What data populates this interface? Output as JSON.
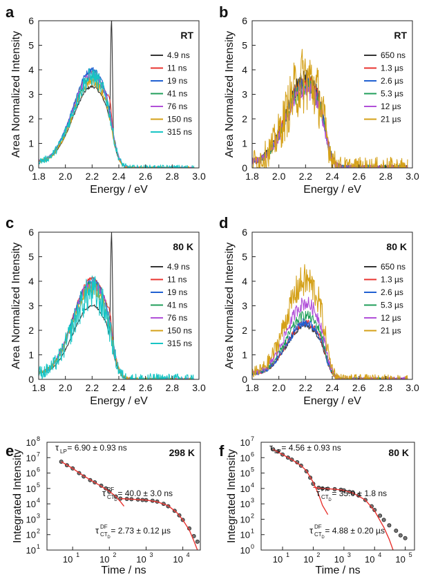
{
  "chart_data": [
    {
      "panel": "a",
      "type": "line",
      "annotation": "RT",
      "xlabel": "Energy / eV",
      "ylabel": "Area Normalized Intensity",
      "xlim": [
        1.8,
        3.0
      ],
      "ylim": [
        0,
        6
      ],
      "xticks": [
        "1.8",
        "2.0",
        "2.2",
        "2.4",
        "2.6",
        "2.8",
        "3.0"
      ],
      "yticks": [
        "0",
        "1",
        "2",
        "3",
        "4",
        "5",
        "6"
      ],
      "legend_position": "right",
      "series": [
        {
          "name": "4.9 ns",
          "color": "#333333",
          "peak": 3.3,
          "spike": 6.0,
          "noise": 0.05
        },
        {
          "name": "11 ns",
          "color": "#e8332f",
          "peak": 3.9,
          "shoulder": 3.0,
          "noise": 0.05
        },
        {
          "name": "19 ns",
          "color": "#1f5fd1",
          "peak": 4.0,
          "noise": 0.08
        },
        {
          "name": "41 ns",
          "color": "#1f9e5a",
          "peak": 3.7,
          "noise": 0.1
        },
        {
          "name": "76 ns",
          "color": "#b04fd8",
          "peak": 3.8,
          "noise": 0.12
        },
        {
          "name": "150 ns",
          "color": "#d4a017",
          "peak": 3.5,
          "noise": 0.15
        },
        {
          "name": "315 ns",
          "color": "#17c4c4",
          "peak": 3.7,
          "noise": 0.3
        }
      ]
    },
    {
      "panel": "b",
      "type": "line",
      "annotation": "RT",
      "xlabel": "Energy / eV",
      "ylabel": "Area Normalized Intensity",
      "xlim": [
        1.8,
        3.0
      ],
      "ylim": [
        0,
        6
      ],
      "xticks": [
        "1.8",
        "2.0",
        "2.2",
        "2.4",
        "2.6",
        "2.8",
        "3.0"
      ],
      "yticks": [
        "0",
        "1",
        "2",
        "3",
        "4",
        "5",
        "6"
      ],
      "legend_position": "right",
      "series": [
        {
          "name": "650 ns",
          "color": "#333333",
          "peak": 3.6,
          "noise": 0.3
        },
        {
          "name": "1.3 µs",
          "color": "#e8332f",
          "peak": 3.5,
          "noise": 0.25
        },
        {
          "name": "2.6 µs",
          "color": "#1f5fd1",
          "peak": 3.4,
          "noise": 0.25
        },
        {
          "name": "5.3 µs",
          "color": "#1f9e5a",
          "peak": 3.3,
          "noise": 0.3
        },
        {
          "name": "12 µs",
          "color": "#b04fd8",
          "peak": 3.2,
          "noise": 0.35
        },
        {
          "name": "21 µs",
          "color": "#d4a017",
          "peak": 3.6,
          "noise": 1.1
        }
      ]
    },
    {
      "panel": "c",
      "type": "line",
      "annotation": "80 K",
      "xlabel": "Energy / eV",
      "ylabel": "Area Normalized Intensity",
      "xlim": [
        1.8,
        3.0
      ],
      "ylim": [
        0,
        6
      ],
      "xticks": [
        "1.8",
        "2.0",
        "2.2",
        "2.4",
        "2.6",
        "2.8",
        "3.0"
      ],
      "yticks": [
        "0",
        "1",
        "2",
        "3",
        "4",
        "5",
        "6"
      ],
      "legend_position": "right",
      "series": [
        {
          "name": "4.9 ns",
          "color": "#333333",
          "peak": 3.0,
          "spike": 6.0,
          "noise": 0.05
        },
        {
          "name": "11 ns",
          "color": "#e8332f",
          "peak": 4.1,
          "shoulder": 3.0,
          "noise": 0.05
        },
        {
          "name": "19 ns",
          "color": "#1f5fd1",
          "peak": 4.0,
          "noise": 0.1
        },
        {
          "name": "41 ns",
          "color": "#1f9e5a",
          "peak": 3.9,
          "noise": 0.1
        },
        {
          "name": "76 ns",
          "color": "#b04fd8",
          "peak": 3.9,
          "noise": 0.15
        },
        {
          "name": "150 ns",
          "color": "#d4a017",
          "peak": 3.7,
          "noise": 0.2
        },
        {
          "name": "315 ns",
          "color": "#17c4c4",
          "peak": 3.5,
          "noise": 0.6
        }
      ]
    },
    {
      "panel": "d",
      "type": "line",
      "annotation": "80 K",
      "xlabel": "Energy / eV",
      "ylabel": "Area Normalized Intensity",
      "xlim": [
        1.8,
        3.0
      ],
      "ylim": [
        0,
        6
      ],
      "xticks": [
        "1.8",
        "2.0",
        "2.2",
        "2.4",
        "2.6",
        "2.8",
        "3.0"
      ],
      "yticks": [
        "0",
        "1",
        "2",
        "3",
        "4",
        "5",
        "6"
      ],
      "legend_position": "right",
      "series": [
        {
          "name": "650 ns",
          "color": "#333333",
          "peak": 2.2,
          "noise": 0.15
        },
        {
          "name": "1.3 µs",
          "color": "#e8332f",
          "peak": 2.3,
          "noise": 0.15
        },
        {
          "name": "2.6 µs",
          "color": "#1f5fd1",
          "peak": 2.3,
          "noise": 0.2
        },
        {
          "name": "5.3 µs",
          "color": "#1f9e5a",
          "peak": 2.6,
          "noise": 0.2
        },
        {
          "name": "12 µs",
          "color": "#b04fd8",
          "peak": 3.1,
          "noise": 0.25
        },
        {
          "name": "21 µs",
          "color": "#d4a017",
          "peak": 4.0,
          "noise": 0.5
        }
      ]
    },
    {
      "panel": "e",
      "type": "scatter",
      "annotation": "298 K",
      "xlabel": "Time / ns",
      "ylabel": "Integrated Intensity",
      "xscale": "log",
      "yscale": "log",
      "xlim": [
        2,
        30000
      ],
      "ylim": [
        10,
        100000000
      ],
      "xtick_exponents": [
        1,
        2,
        3,
        4
      ],
      "ytick_exponents": [
        1,
        2,
        3,
        4,
        5,
        6,
        7,
        8
      ],
      "fit_annotations": [
        {
          "sym": "τ",
          "sub": "LP",
          "sup": "",
          "text": " = 6.90 ± 0.93 ns"
        },
        {
          "sym": "τ",
          "sub": "CT",
          "subsub": "D",
          "sup": "PF",
          "text": " = 40.0 ± 3.0 ns"
        },
        {
          "sym": "τ",
          "sub": "CT",
          "subsub": "D",
          "sup": "DF",
          "text": " = 2.73 ± 0.12 µs"
        }
      ],
      "points": [
        [
          4.9,
          5500000
        ],
        [
          7,
          3200000
        ],
        [
          10,
          2000000
        ],
        [
          15,
          1000000
        ],
        [
          20,
          600000
        ],
        [
          30,
          350000
        ],
        [
          40,
          250000
        ],
        [
          60,
          150000
        ],
        [
          80,
          100000
        ],
        [
          100,
          60000
        ],
        [
          150,
          30000
        ],
        [
          200,
          22000
        ],
        [
          300,
          21000
        ],
        [
          400,
          20000
        ],
        [
          600,
          19000
        ],
        [
          800,
          18000
        ],
        [
          1000,
          17500
        ],
        [
          1500,
          16000
        ],
        [
          2000,
          14000
        ],
        [
          3000,
          10000
        ],
        [
          4000,
          7000
        ],
        [
          6000,
          3500
        ],
        [
          8000,
          1800
        ],
        [
          10000,
          900
        ],
        [
          15000,
          250
        ],
        [
          20000,
          80
        ],
        [
          25000,
          35
        ]
      ],
      "fit_lines": [
        {
          "color": "#e8332f",
          "x": [
            4.9,
            10,
            20,
            50,
            100,
            150,
            200,
            250
          ],
          "y": [
            5500000,
            2000000,
            650000,
            180000,
            65000,
            30000,
            14000,
            7000
          ]
        },
        {
          "color": "#e8332f",
          "x": [
            200,
            500,
            1000,
            2000,
            4000,
            7000,
            10000,
            15000,
            20000,
            25000
          ],
          "y": [
            22000,
            19500,
            17500,
            13500,
            7500,
            2600,
            900,
            200,
            40,
            10
          ]
        }
      ]
    },
    {
      "panel": "f",
      "type": "scatter",
      "annotation": "80 K",
      "xlabel": "Time / ns",
      "ylabel": "Integrated Intensity",
      "xscale": "log",
      "yscale": "log",
      "xlim": [
        2,
        200000
      ],
      "ylim": [
        1,
        10000000
      ],
      "xtick_exponents": [
        1,
        2,
        3,
        4,
        5
      ],
      "ytick_exponents": [
        0,
        1,
        2,
        3,
        4,
        5,
        6,
        7
      ],
      "fit_annotations": [
        {
          "sym": "τ",
          "sub": "LP",
          "sup": "",
          "text": " = 4.56 ± 0.93 ns"
        },
        {
          "sym": "τ",
          "sub": "CT",
          "subsub": "D",
          "sup": "PF",
          "text": " = 35.0 ± 1.8 ns"
        },
        {
          "sym": "τ",
          "sub": "CT",
          "subsub": "D",
          "sup": "DF",
          "text": " = 4.88 ± 0.20 µs"
        }
      ],
      "points": [
        [
          4.9,
          3500000
        ],
        [
          7,
          2500000
        ],
        [
          10,
          1600000
        ],
        [
          15,
          1000000
        ],
        [
          20,
          750000
        ],
        [
          30,
          500000
        ],
        [
          40,
          300000
        ],
        [
          60,
          130000
        ],
        [
          80,
          50000
        ],
        [
          100,
          20000
        ],
        [
          150,
          11000
        ],
        [
          200,
          10000
        ],
        [
          300,
          9500
        ],
        [
          500,
          9000
        ],
        [
          800,
          8200
        ],
        [
          1000,
          7500
        ],
        [
          1500,
          6000
        ],
        [
          2000,
          5000
        ],
        [
          3000,
          3500
        ],
        [
          5000,
          1800
        ],
        [
          8000,
          700
        ],
        [
          10000,
          400
        ],
        [
          15000,
          170
        ],
        [
          20000,
          90
        ],
        [
          30000,
          40
        ],
        [
          50000,
          18
        ],
        [
          70000,
          9
        ],
        [
          100000,
          6
        ]
      ],
      "fit_lines": [
        {
          "color": "#e8332f",
          "x": [
            4.9,
            10,
            20,
            40,
            60,
            100,
            150,
            200,
            300
          ],
          "y": [
            3500000,
            1600000,
            750000,
            300000,
            140000,
            25000,
            4000,
            800,
            200
          ]
        },
        {
          "color": "#e8332f",
          "x": [
            100,
            200,
            500,
            1000,
            2000,
            5000,
            10000,
            20000,
            30000,
            40000
          ],
          "y": [
            12000,
            10000,
            9000,
            7500,
            5000,
            1800,
            350,
            30,
            5,
            1
          ]
        }
      ]
    }
  ]
}
